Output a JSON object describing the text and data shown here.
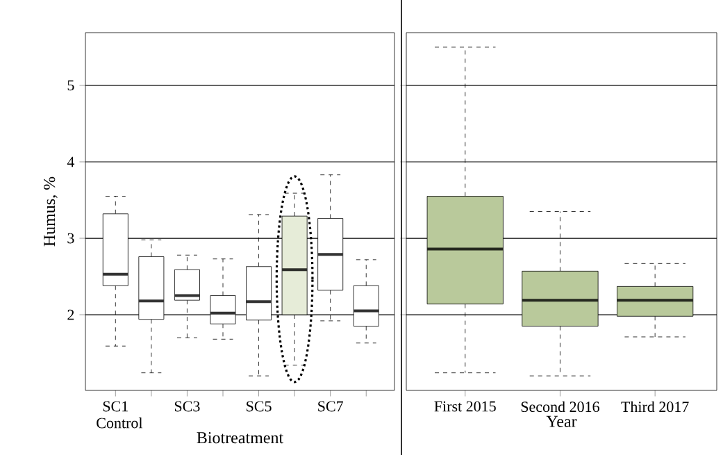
{
  "chart_data": [
    {
      "type": "box",
      "ylabel": "Humus, %",
      "xlabel": "Biotreatment",
      "categories": [
        "SC1 Control",
        null,
        "SC3",
        null,
        "SC5",
        null,
        "SC7",
        null
      ],
      "colors": [
        "#ffffff",
        "#ffffff",
        "#ffffff",
        "#ffffff",
        "#ffffff",
        "#e6ecd8",
        "#ffffff",
        "#ffffff"
      ],
      "boxes": [
        {
          "low": 1.59,
          "q1": 2.38,
          "median": 2.53,
          "q3": 3.32,
          "high": 3.55
        },
        {
          "low": 1.24,
          "q1": 1.94,
          "median": 2.18,
          "q3": 2.76,
          "high": 2.98
        },
        {
          "low": 1.7,
          "q1": 2.19,
          "median": 2.25,
          "q3": 2.59,
          "high": 2.78
        },
        {
          "low": 1.68,
          "q1": 1.88,
          "median": 2.02,
          "q3": 2.25,
          "high": 2.73
        },
        {
          "low": 1.2,
          "q1": 1.93,
          "median": 2.17,
          "q3": 2.63,
          "high": 3.31
        },
        {
          "low": 1.34,
          "q1": 2.0,
          "median": 2.59,
          "q3": 3.29,
          "high": 3.59
        },
        {
          "low": 1.92,
          "q1": 2.32,
          "median": 2.79,
          "q3": 3.26,
          "high": 3.83
        },
        {
          "low": 1.63,
          "q1": 1.85,
          "median": 2.05,
          "q3": 2.38,
          "high": 2.72
        }
      ],
      "ylim": [
        1.01,
        5.69
      ],
      "yticks": [
        2,
        3,
        4,
        5
      ],
      "grid": "y"
    },
    {
      "type": "box",
      "xlabel": "Year",
      "categories": [
        "First 2015",
        "Second 2016",
        "Third 2017"
      ],
      "colors": [
        "#b9c99b",
        "#b9c99b",
        "#b9c99b"
      ],
      "boxes": [
        {
          "low": 1.24,
          "q1": 2.14,
          "median": 2.86,
          "q3": 3.55,
          "high": 5.5
        },
        {
          "low": 1.2,
          "q1": 1.85,
          "median": 2.19,
          "q3": 2.57,
          "high": 3.35
        },
        {
          "low": 1.71,
          "q1": 1.98,
          "median": 2.19,
          "q3": 2.37,
          "high": 2.67
        }
      ],
      "ylim": [
        1.01,
        5.69
      ],
      "yticks": [
        2,
        3,
        4,
        5
      ],
      "grid": "y",
      "tick_labels": "x"
    }
  ]
}
